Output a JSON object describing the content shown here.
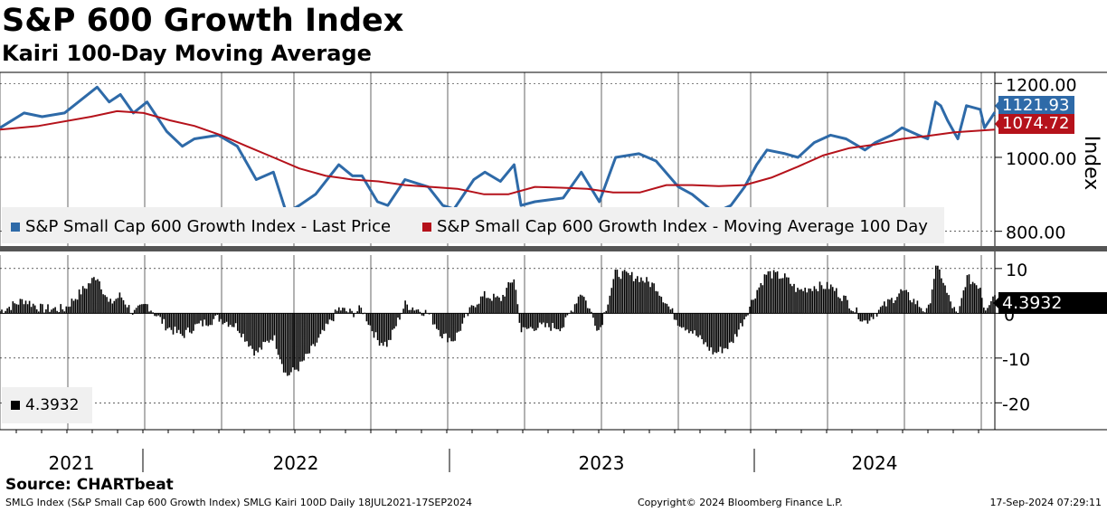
{
  "title": "S&P 600 Growth Index",
  "subtitle": "Kairi 100-Day Moving Average",
  "source": "Source: CHARTbeat",
  "footer": {
    "left": "SMLG Index (S&P Small Cap 600 Growth Index) SMLG Kairi 100D  Daily 18JUL2021-17SEP2024",
    "middle": "Copyright© 2024 Bloomberg Finance L.P.",
    "right": "17-Sep-2024 07:29:11"
  },
  "colors": {
    "last_price": "#2e6aa8",
    "moving_average": "#b5121b",
    "kairi": "#000000",
    "legend_bg": "#f0f0f0",
    "divider": "#555555"
  },
  "chart_data": [
    {
      "type": "line",
      "ylabel": "Index",
      "ylim": [
        760,
        1230
      ],
      "y_ticks": [
        "1200.00",
        "1000.00",
        "800.00"
      ],
      "y_tick_values": [
        1200,
        1000,
        800
      ],
      "x_tick_labels": [
        "2021",
        "2022",
        "2023",
        "2024"
      ],
      "x_range": [
        "2021-07-18",
        "2024-09-17"
      ],
      "grid": true,
      "legend_placement": "bottom-left",
      "series": [
        {
          "name": "S&P Small Cap 600 Growth Index - Last Price",
          "last_value_label": "1121.93",
          "x": [
            "2021-07-18",
            "2021-08-15",
            "2021-09-05",
            "2021-10-01",
            "2021-11-08",
            "2021-11-22",
            "2021-12-05",
            "2021-12-20",
            "2022-01-05",
            "2022-01-28",
            "2022-02-15",
            "2022-03-01",
            "2022-03-29",
            "2022-04-20",
            "2022-05-12",
            "2022-06-01",
            "2022-06-16",
            "2022-07-01",
            "2022-07-20",
            "2022-08-16",
            "2022-09-01",
            "2022-09-12",
            "2022-09-30",
            "2022-10-12",
            "2022-11-01",
            "2022-11-28",
            "2022-12-15",
            "2022-12-28",
            "2023-01-20",
            "2023-02-02",
            "2023-02-20",
            "2023-03-08",
            "2023-03-16",
            "2023-04-01",
            "2023-05-04",
            "2023-05-25",
            "2023-06-15",
            "2023-07-04",
            "2023-07-31",
            "2023-08-20",
            "2023-09-15",
            "2023-10-01",
            "2023-10-27",
            "2023-11-15",
            "2023-12-01",
            "2023-12-15",
            "2023-12-27",
            "2024-01-17",
            "2024-02-01",
            "2024-02-20",
            "2024-03-10",
            "2024-03-28",
            "2024-04-19",
            "2024-05-01",
            "2024-05-20",
            "2024-06-01",
            "2024-06-20",
            "2024-07-01",
            "2024-07-10",
            "2024-07-16",
            "2024-07-24",
            "2024-08-05",
            "2024-08-15",
            "2024-08-31",
            "2024-09-05",
            "2024-09-17"
          ],
          "values": [
            1080,
            1120,
            1110,
            1120,
            1190,
            1150,
            1170,
            1120,
            1150,
            1070,
            1030,
            1050,
            1060,
            1030,
            940,
            960,
            850,
            870,
            900,
            980,
            950,
            950,
            880,
            870,
            940,
            920,
            870,
            860,
            940,
            960,
            935,
            980,
            870,
            880,
            890,
            960,
            880,
            1000,
            1010,
            990,
            920,
            900,
            850,
            870,
            920,
            980,
            1020,
            1010,
            1000,
            1040,
            1060,
            1050,
            1020,
            1040,
            1060,
            1080,
            1060,
            1050,
            1150,
            1140,
            1100,
            1050,
            1140,
            1130,
            1080,
            1122
          ]
        },
        {
          "name": "S&P Small Cap 600 Growth Index - Moving Average 100 Day",
          "last_value_label": "1074.72",
          "x": [
            "2021-07-18",
            "2021-09-01",
            "2021-11-01",
            "2021-12-01",
            "2022-01-01",
            "2022-02-01",
            "2022-03-01",
            "2022-04-01",
            "2022-05-01",
            "2022-06-01",
            "2022-07-01",
            "2022-08-01",
            "2022-09-01",
            "2022-10-01",
            "2022-11-01",
            "2022-12-01",
            "2023-01-01",
            "2023-02-01",
            "2023-03-01",
            "2023-04-01",
            "2023-05-01",
            "2023-06-01",
            "2023-07-01",
            "2023-08-01",
            "2023-09-01",
            "2023-10-01",
            "2023-11-01",
            "2023-12-01",
            "2024-01-01",
            "2024-02-01",
            "2024-03-01",
            "2024-04-01",
            "2024-05-01",
            "2024-06-01",
            "2024-07-01",
            "2024-08-01",
            "2024-09-17"
          ],
          "values": [
            1075,
            1085,
            1110,
            1125,
            1120,
            1100,
            1085,
            1060,
            1030,
            1000,
            970,
            950,
            940,
            935,
            925,
            920,
            915,
            900,
            900,
            920,
            918,
            915,
            905,
            905,
            925,
            925,
            922,
            925,
            945,
            975,
            1005,
            1025,
            1035,
            1050,
            1058,
            1068,
            1075
          ]
        }
      ]
    },
    {
      "type": "bar",
      "name": "Kairi",
      "ylim": [
        -26,
        13
      ],
      "y_ticks": [
        "10",
        "0",
        "-10",
        "-20"
      ],
      "y_tick_values": [
        10,
        0,
        -10,
        -20
      ],
      "grid": true,
      "last_value_label": "4.3932",
      "legend_label": "4.3932",
      "x": [
        "2021-07-18",
        "2021-08-15",
        "2021-09-05",
        "2021-10-01",
        "2021-11-08",
        "2021-11-22",
        "2021-12-05",
        "2021-12-20",
        "2022-01-05",
        "2022-01-28",
        "2022-02-15",
        "2022-03-01",
        "2022-03-29",
        "2022-04-20",
        "2022-05-12",
        "2022-06-01",
        "2022-06-16",
        "2022-07-01",
        "2022-07-20",
        "2022-08-16",
        "2022-09-01",
        "2022-09-12",
        "2022-09-30",
        "2022-10-12",
        "2022-11-01",
        "2022-11-28",
        "2022-12-15",
        "2022-12-28",
        "2023-01-20",
        "2023-02-02",
        "2023-02-20",
        "2023-03-08",
        "2023-03-16",
        "2023-04-01",
        "2023-05-04",
        "2023-05-25",
        "2023-06-15",
        "2023-07-04",
        "2023-07-31",
        "2023-08-20",
        "2023-09-15",
        "2023-10-01",
        "2023-10-27",
        "2023-11-15",
        "2023-12-01",
        "2023-12-15",
        "2023-12-27",
        "2024-01-17",
        "2024-02-01",
        "2024-02-20",
        "2024-03-10",
        "2024-03-28",
        "2024-04-19",
        "2024-05-01",
        "2024-05-20",
        "2024-06-01",
        "2024-06-20",
        "2024-07-01",
        "2024-07-10",
        "2024-07-16",
        "2024-07-24",
        "2024-08-05",
        "2024-08-15",
        "2024-08-31",
        "2024-09-05",
        "2024-09-17"
      ],
      "values": [
        0.5,
        3,
        1,
        1,
        8.5,
        2,
        4,
        0,
        2,
        -3,
        -5,
        -3,
        -1,
        -3,
        -9,
        -5,
        -14,
        -12,
        -7,
        1,
        0,
        1,
        -6,
        -7,
        2,
        0,
        -5,
        -6,
        2,
        4,
        3,
        8,
        -4,
        -3,
        -3,
        5,
        -4,
        9,
        8,
        6,
        -2,
        -4,
        -9,
        -7,
        -1,
        5,
        9,
        8,
        5,
        6,
        6,
        3,
        -2,
        0,
        3,
        5,
        2,
        0,
        10,
        9,
        4,
        -1,
        8,
        6,
        1,
        4.4
      ]
    }
  ]
}
